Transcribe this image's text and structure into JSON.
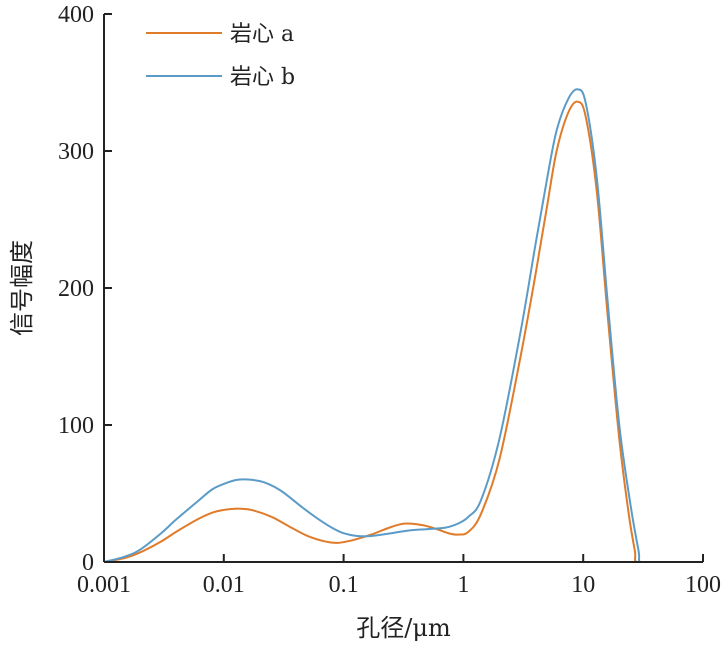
{
  "chart_data": {
    "type": "line",
    "title": "",
    "xlabel": "孔径/μm",
    "ylabel": "信号幅度",
    "x_scale": "log",
    "xlim": [
      0.001,
      100
    ],
    "ylim": [
      0,
      400
    ],
    "x_ticks": [
      {
        "value": 0.001,
        "label": "0.001"
      },
      {
        "value": 0.01,
        "label": "0.01"
      },
      {
        "value": 0.1,
        "label": "0.1"
      },
      {
        "value": 1,
        "label": "1"
      },
      {
        "value": 10,
        "label": "10"
      },
      {
        "value": 100,
        "label": "100"
      }
    ],
    "y_ticks": [
      {
        "value": 0,
        "label": "0"
      },
      {
        "value": 100,
        "label": "100"
      },
      {
        "value": 200,
        "label": "200"
      },
      {
        "value": 300,
        "label": "300"
      },
      {
        "value": 400,
        "label": "400"
      }
    ],
    "grid": false,
    "legend_position": "top-left",
    "series": [
      {
        "name": "岩心 a",
        "color": "#e07b2a",
        "points": [
          [
            0.001,
            0
          ],
          [
            0.0015,
            3
          ],
          [
            0.002,
            7
          ],
          [
            0.003,
            15
          ],
          [
            0.004,
            22
          ],
          [
            0.006,
            31
          ],
          [
            0.008,
            36
          ],
          [
            0.01,
            38
          ],
          [
            0.013,
            39
          ],
          [
            0.017,
            38
          ],
          [
            0.025,
            33
          ],
          [
            0.035,
            26
          ],
          [
            0.05,
            19
          ],
          [
            0.07,
            15
          ],
          [
            0.09,
            14
          ],
          [
            0.12,
            16
          ],
          [
            0.17,
            20
          ],
          [
            0.24,
            25
          ],
          [
            0.32,
            28
          ],
          [
            0.45,
            27
          ],
          [
            0.6,
            24
          ],
          [
            0.75,
            21
          ],
          [
            0.9,
            20
          ],
          [
            1.1,
            22
          ],
          [
            1.4,
            35
          ],
          [
            2,
            75
          ],
          [
            3,
            150
          ],
          [
            4,
            210
          ],
          [
            5,
            260
          ],
          [
            6,
            300
          ],
          [
            7.5,
            328
          ],
          [
            9,
            336
          ],
          [
            10.5,
            325
          ],
          [
            13,
            270
          ],
          [
            16,
            180
          ],
          [
            20,
            90
          ],
          [
            24,
            35
          ],
          [
            27,
            8
          ],
          [
            28,
            0
          ],
          [
            40,
            0
          ],
          [
            100,
            0
          ]
        ]
      },
      {
        "name": "岩心 b",
        "color": "#5b9bc8",
        "points": [
          [
            0.001,
            0
          ],
          [
            0.0015,
            4
          ],
          [
            0.002,
            9
          ],
          [
            0.003,
            21
          ],
          [
            0.004,
            31
          ],
          [
            0.006,
            44
          ],
          [
            0.008,
            53
          ],
          [
            0.01,
            57
          ],
          [
            0.013,
            60
          ],
          [
            0.017,
            60
          ],
          [
            0.022,
            58
          ],
          [
            0.03,
            52
          ],
          [
            0.045,
            40
          ],
          [
            0.06,
            32
          ],
          [
            0.08,
            25
          ],
          [
            0.1,
            21
          ],
          [
            0.13,
            19
          ],
          [
            0.17,
            19
          ],
          [
            0.25,
            21
          ],
          [
            0.35,
            23
          ],
          [
            0.5,
            24
          ],
          [
            0.7,
            25
          ],
          [
            0.9,
            28
          ],
          [
            1.1,
            33
          ],
          [
            1.4,
            45
          ],
          [
            2,
            90
          ],
          [
            3,
            168
          ],
          [
            4,
            232
          ],
          [
            5,
            280
          ],
          [
            6,
            315
          ],
          [
            7.5,
            338
          ],
          [
            9,
            345
          ],
          [
            10.5,
            335
          ],
          [
            13,
            280
          ],
          [
            16,
            190
          ],
          [
            20,
            100
          ],
          [
            25,
            40
          ],
          [
            29,
            8
          ],
          [
            30,
            0
          ],
          [
            40,
            0
          ],
          [
            100,
            0
          ]
        ]
      }
    ]
  }
}
